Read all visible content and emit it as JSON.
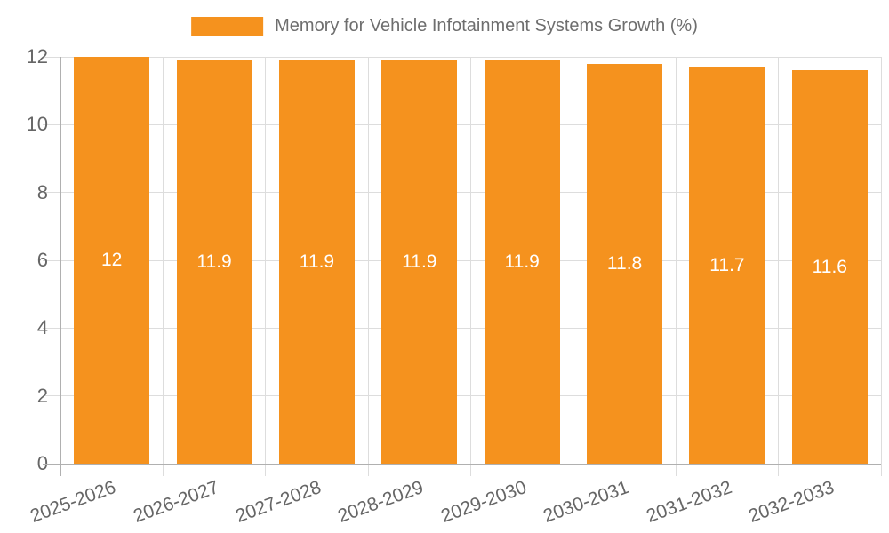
{
  "chart_data": {
    "type": "bar",
    "title": "",
    "legend": "Memory for Vehicle Infotainment Systems Growth (%)",
    "legend_position": "top-center",
    "categories": [
      "2025-2026",
      "2026-2027",
      "2027-2028",
      "2028-2029",
      "2029-2030",
      "2030-2031",
      "2031-2032",
      "2032-2033"
    ],
    "series": [
      {
        "name": "Memory for Vehicle Infotainment Systems Growth (%)",
        "values": [
          12,
          11.9,
          11.9,
          11.9,
          11.9,
          11.8,
          11.7,
          11.6
        ],
        "bar_labels": [
          "12",
          "11.9",
          "11.9",
          "11.9",
          "11.9",
          "11.8",
          "11.7",
          "11.6"
        ]
      }
    ],
    "xlabel": "",
    "ylabel": "",
    "ylim": [
      0,
      12
    ],
    "y_ticks": [
      0,
      2,
      4,
      6,
      8,
      10,
      12
    ],
    "grid": true,
    "colors": {
      "bar": "#f5921e",
      "bar_label_text": "#ffffff",
      "axis_text": "#666666",
      "legend_text": "#6e6e6e",
      "gridline": "#dddddd",
      "axis_line": "#b0b0b0"
    }
  }
}
